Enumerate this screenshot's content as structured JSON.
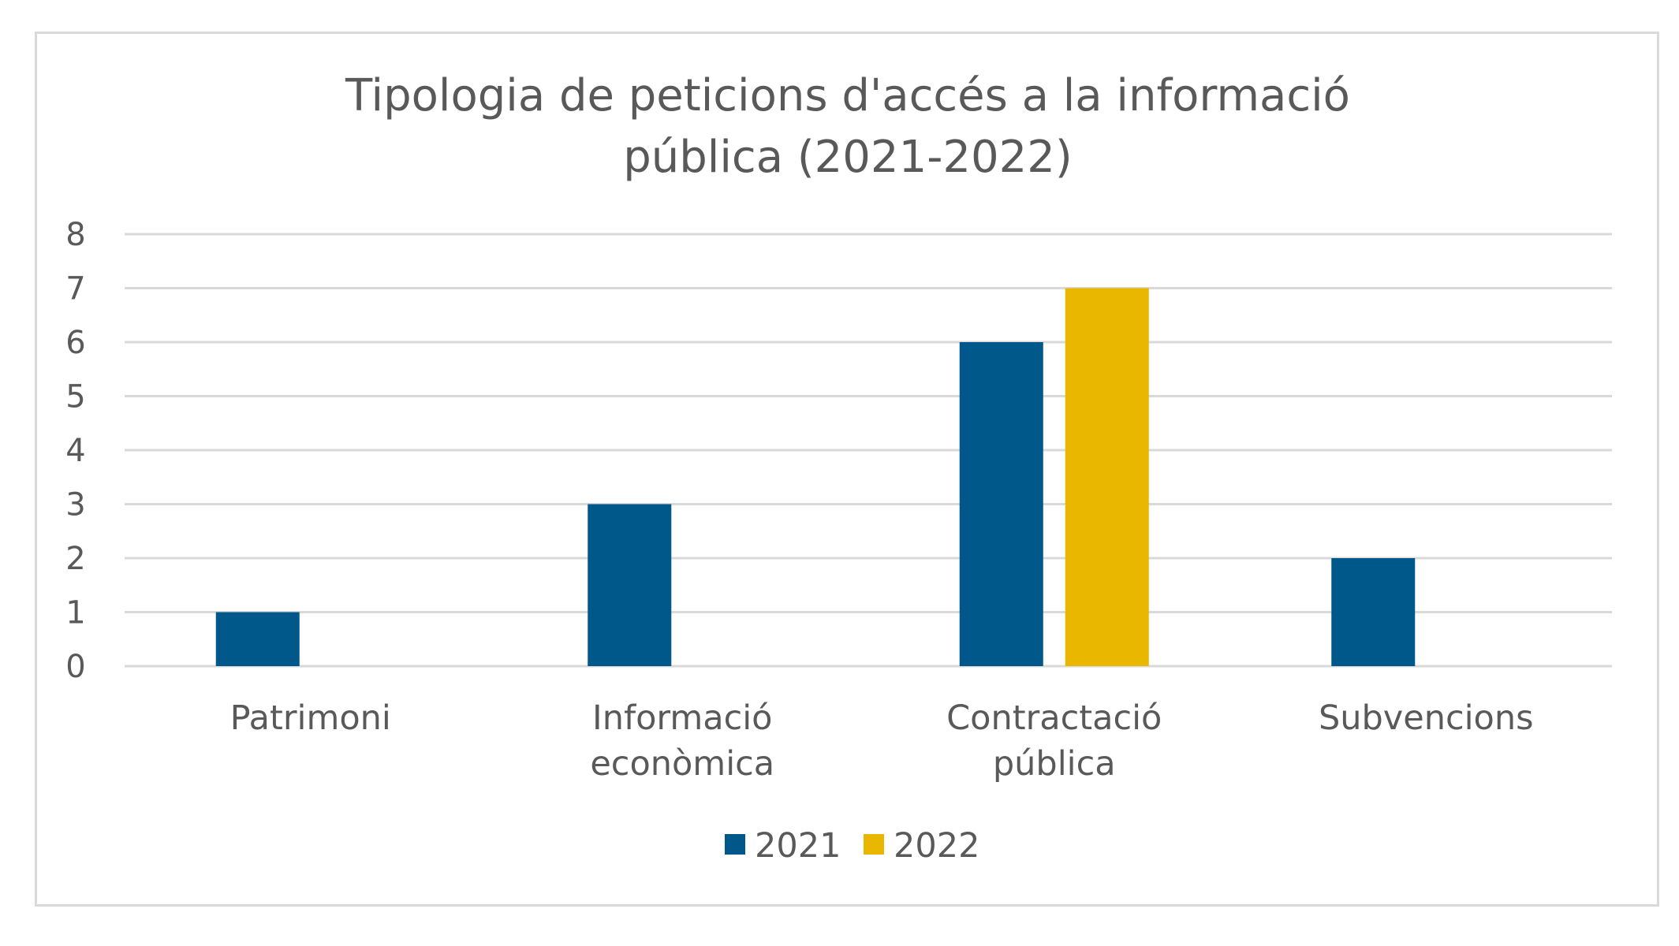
{
  "chart_data": {
    "type": "bar",
    "title_lines": [
      "Tipologia de peticions d'accés a la informació",
      "pública (2021-2022)"
    ],
    "categories": [
      [
        "Patrimoni"
      ],
      [
        "Informació",
        "econòmica"
      ],
      [
        "Contractació",
        "pública"
      ],
      [
        "Subvencions"
      ]
    ],
    "series": [
      {
        "name": "2021",
        "color": "#00578a",
        "values": [
          1,
          3,
          6,
          2
        ]
      },
      {
        "name": "2022",
        "color": "#e9b600",
        "values": [
          0,
          0,
          7,
          0
        ]
      }
    ],
    "ylim": [
      0,
      8
    ],
    "yticks": [
      "0",
      "1",
      "2",
      "3",
      "4",
      "5",
      "6",
      "7",
      "8"
    ],
    "grid": true,
    "legend_position": "bottom"
  }
}
